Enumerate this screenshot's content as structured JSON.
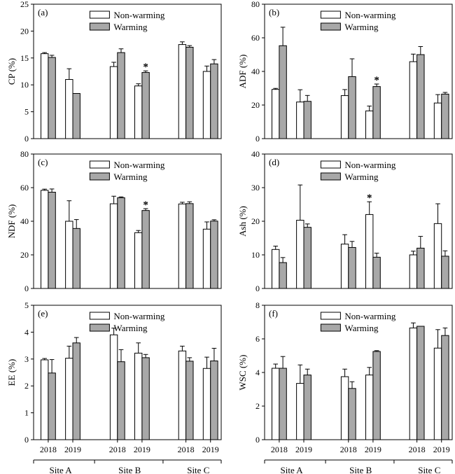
{
  "figure": {
    "x_categories": [
      "2018",
      "2019",
      "2018",
      "2019",
      "2018",
      "2019"
    ],
    "groups": [
      "Site A",
      "Site B",
      "Site C"
    ],
    "colors": {
      "non_warming": "#ffffff",
      "warming": "#a8a8a8",
      "axis": "#000000"
    }
  },
  "chart_data": [
    {
      "type": "bar",
      "panel": "(a)",
      "ylabel": "CP (%)",
      "ylim": [
        0,
        25
      ],
      "yticks": [
        0,
        5,
        10,
        15,
        20,
        25
      ],
      "legend": [
        "Non-warming",
        "Warming"
      ],
      "legend_position": "top-right",
      "categories": [
        "2018",
        "2019",
        "2018",
        "2019",
        "2018",
        "2019"
      ],
      "series": [
        {
          "name": "Non-warming",
          "values": [
            15.8,
            11.0,
            13.4,
            9.8,
            17.5,
            12.5
          ],
          "errors": [
            0.2,
            2.0,
            0.8,
            0.4,
            0.5,
            1.0
          ]
        },
        {
          "name": "Warming",
          "values": [
            15.1,
            8.4,
            16.0,
            12.3,
            17.0,
            13.9
          ],
          "errors": [
            0.4,
            0.0,
            0.7,
            0.3,
            0.3,
            0.8
          ]
        }
      ],
      "significance": [
        {
          "category_index": 3,
          "series": "Warming",
          "label": "*"
        }
      ],
      "show_xticks": false
    },
    {
      "type": "bar",
      "panel": "(b)",
      "ylabel": "ADF (%)",
      "ylim": [
        0,
        80
      ],
      "yticks": [
        0,
        20,
        40,
        60,
        80
      ],
      "legend": [
        "Non-warming",
        "Warming"
      ],
      "legend_position": "top-right",
      "categories": [
        "2018",
        "2019",
        "2018",
        "2019",
        "2018",
        "2019"
      ],
      "series": [
        {
          "name": "Non-warming",
          "values": [
            29.3,
            21.8,
            25.6,
            16.5,
            45.8,
            21.2
          ],
          "errors": [
            0.6,
            7.3,
            3.6,
            2.9,
            4.5,
            5.0
          ]
        },
        {
          "name": "Warming",
          "values": [
            55.3,
            22.2,
            36.9,
            31.0,
            50.0,
            26.5
          ],
          "errors": [
            11.0,
            3.5,
            10.6,
            1.5,
            4.8,
            1.0
          ]
        }
      ],
      "significance": [
        {
          "category_index": 3,
          "series": "Warming",
          "label": "*"
        }
      ],
      "show_xticks": false
    },
    {
      "type": "bar",
      "panel": "(c)",
      "ylabel": "NDF (%)",
      "ylim": [
        0,
        80
      ],
      "yticks": [
        0,
        20,
        40,
        60,
        80
      ],
      "legend": [
        "Non-warming",
        "Warming"
      ],
      "legend_position": "top-right",
      "categories": [
        "2018",
        "2019",
        "2018",
        "2019",
        "2018",
        "2019"
      ],
      "series": [
        {
          "name": "Non-warming",
          "values": [
            58.4,
            40.0,
            50.4,
            33.2,
            50.3,
            35.3
          ],
          "errors": [
            0.7,
            12.2,
            4.5,
            1.3,
            1.0,
            4.3
          ]
        },
        {
          "name": "Warming",
          "values": [
            57.3,
            35.7,
            54.0,
            46.4,
            50.5,
            40.1
          ],
          "errors": [
            1.9,
            5.3,
            0.5,
            1.1,
            1.1,
            0.8
          ]
        }
      ],
      "significance": [
        {
          "category_index": 3,
          "series": "Warming",
          "label": "*"
        }
      ],
      "show_xticks": false
    },
    {
      "type": "bar",
      "panel": "(d)",
      "ylabel": "Ash (%)",
      "ylim": [
        0,
        40
      ],
      "yticks": [
        0,
        10,
        20,
        30,
        40
      ],
      "legend": [
        "Non-warming",
        "Warming"
      ],
      "legend_position": "top-right",
      "categories": [
        "2018",
        "2019",
        "2018",
        "2019",
        "2018",
        "2019"
      ],
      "series": [
        {
          "name": "Non-warming",
          "values": [
            11.6,
            20.3,
            13.2,
            22.0,
            10.0,
            19.3
          ],
          "errors": [
            1.0,
            10.5,
            2.8,
            3.8,
            1.1,
            5.9
          ]
        },
        {
          "name": "Warming",
          "values": [
            7.7,
            18.2,
            12.2,
            9.3,
            12.0,
            9.6
          ],
          "errors": [
            1.5,
            1.0,
            1.8,
            1.2,
            3.5,
            1.6
          ]
        }
      ],
      "significance": [
        {
          "category_index": 3,
          "series": "Non-warming",
          "label": "*"
        }
      ],
      "show_xticks": false
    },
    {
      "type": "bar",
      "panel": "(e)",
      "ylabel": "EE (%)",
      "ylim": [
        0,
        5
      ],
      "yticks": [
        0,
        1,
        2,
        3,
        4,
        5
      ],
      "legend": [
        "Non-warming",
        "Warming"
      ],
      "legend_position": "top-right",
      "categories": [
        "2018",
        "2019",
        "2018",
        "2019",
        "2018",
        "2019"
      ],
      "series": [
        {
          "name": "Non-warming",
          "values": [
            2.97,
            3.03,
            3.9,
            3.22,
            3.3,
            2.65
          ],
          "errors": [
            0.05,
            0.45,
            0.25,
            0.38,
            0.18,
            0.42
          ]
        },
        {
          "name": "Warming",
          "values": [
            2.48,
            3.6,
            2.9,
            3.05,
            2.92,
            2.93
          ],
          "errors": [
            0.5,
            0.2,
            0.45,
            0.12,
            0.13,
            0.47
          ]
        }
      ],
      "significance": [],
      "show_xticks": true
    },
    {
      "type": "bar",
      "panel": "(f)",
      "ylabel": "WSC (%)",
      "ylim": [
        0,
        8
      ],
      "yticks": [
        0,
        2,
        4,
        6,
        8
      ],
      "legend": [
        "Non-warming",
        "Warming"
      ],
      "legend_position": "top-right",
      "categories": [
        "2018",
        "2019",
        "2018",
        "2019",
        "2018",
        "2019"
      ],
      "series": [
        {
          "name": "Non-warming",
          "values": [
            4.25,
            3.35,
            3.75,
            3.85,
            6.65,
            5.45
          ],
          "errors": [
            0.25,
            1.1,
            0.45,
            0.45,
            0.3,
            1.1
          ]
        },
        {
          "name": "Warming",
          "values": [
            4.25,
            3.85,
            3.05,
            5.25,
            6.75,
            6.2
          ],
          "errors": [
            0.7,
            0.35,
            0.4,
            0.05,
            0.0,
            0.45
          ]
        }
      ],
      "significance": [],
      "show_xticks": true
    }
  ]
}
